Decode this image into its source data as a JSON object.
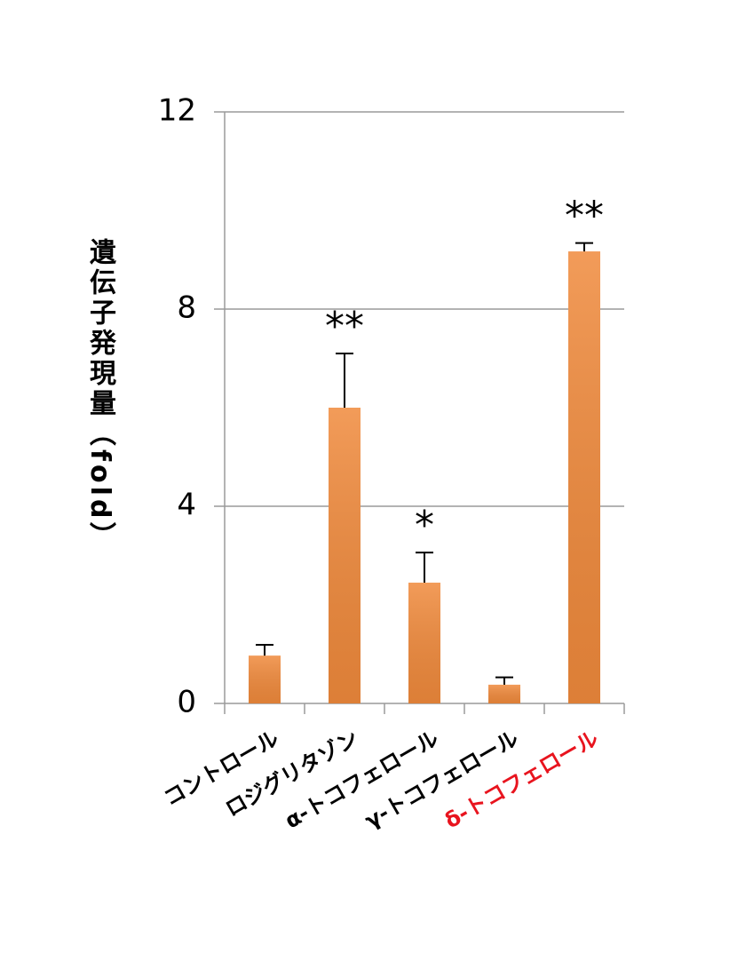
{
  "chart_data": {
    "type": "bar",
    "y_label": "遺伝子発現量（fold）",
    "categories": [
      "コントロール",
      "ロジグリタゾン",
      "α-トコフェロール",
      "γ-トコフェロール",
      "δ-トコフェロール"
    ],
    "category_label_colors": [
      "#000000",
      "#000000",
      "#000000",
      "#000000",
      "#e8141e"
    ],
    "values": [
      0.97,
      6.0,
      2.45,
      0.38,
      9.17
    ],
    "errors": [
      0.22,
      1.1,
      0.61,
      0.15,
      0.17
    ],
    "significance": [
      null,
      "**",
      "*",
      null,
      "**"
    ],
    "color": "#f08a3c",
    "ylim": [
      0,
      12
    ],
    "yticks": [
      0,
      4,
      8,
      12
    ],
    "grid": true
  }
}
